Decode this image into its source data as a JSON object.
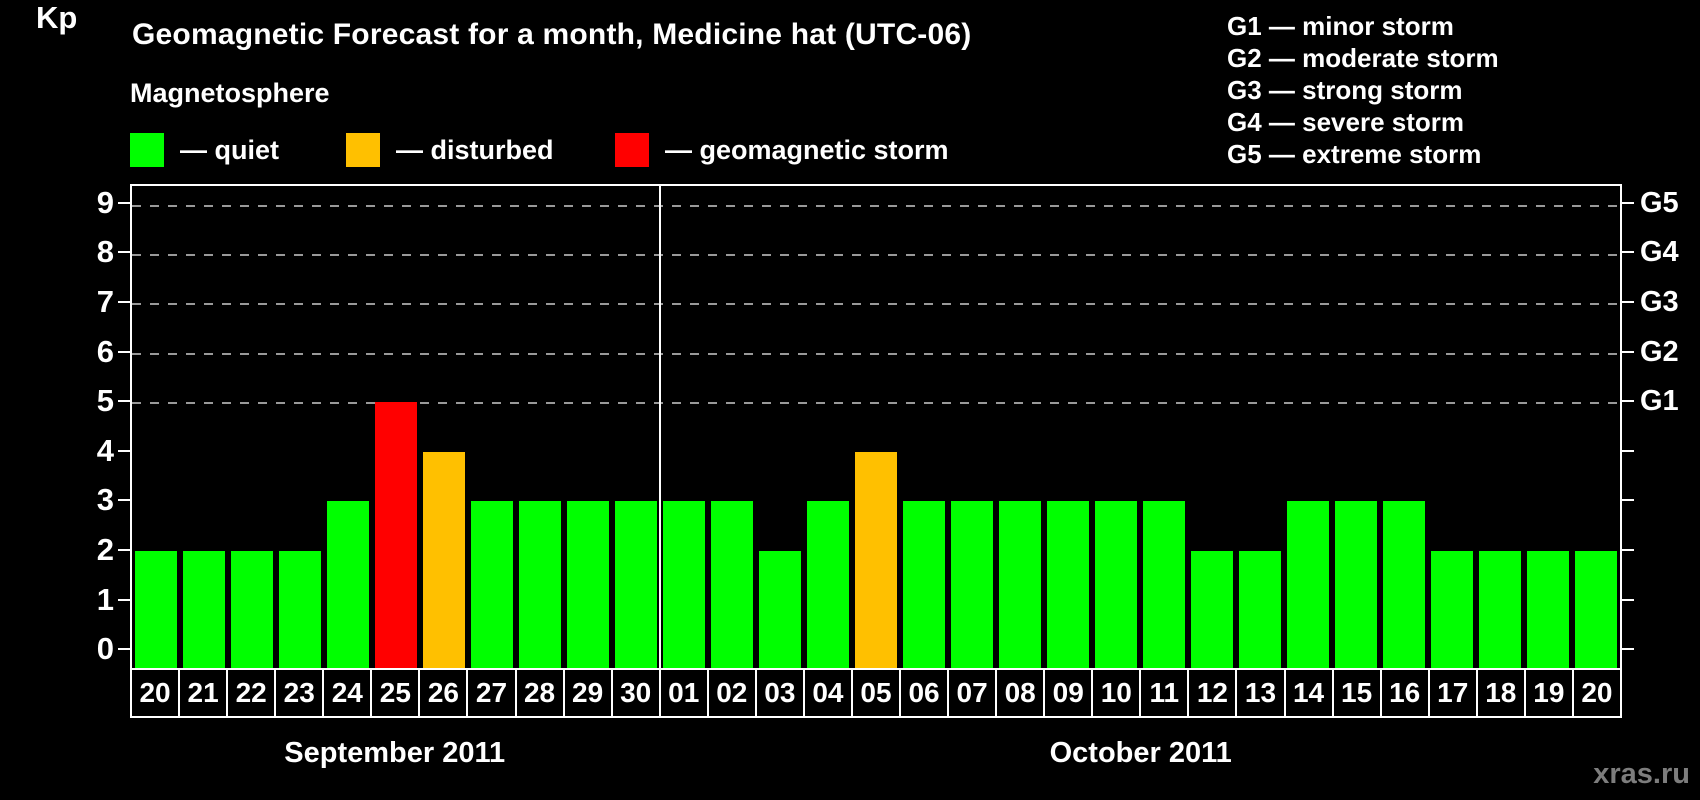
{
  "title": "Geomagnetic Forecast for a month, Medicine hat (UTC-06)",
  "legend": {
    "heading": "Magnetosphere",
    "items": [
      {
        "name": "quiet",
        "label": "— quiet",
        "color": "#00ff00"
      },
      {
        "name": "disturbed",
        "label": "— disturbed",
        "color": "#ffc000"
      },
      {
        "name": "storm",
        "label": "— geomagnetic storm",
        "color": "#ff0000"
      }
    ]
  },
  "g_scale_legend": [
    "G1 — minor storm",
    "G2 — moderate storm",
    "G3 — strong storm",
    "G4 — severe storm",
    "G5 — extreme storm"
  ],
  "watermark": "xras.ru",
  "chart_data": {
    "type": "bar",
    "title": "Geomagnetic Forecast for a month, Medicine hat (UTC-06)",
    "ylabel": "Kp",
    "ylim": [
      -0.375,
      9.375
    ],
    "y_ticks": [
      0,
      1,
      2,
      3,
      4,
      5,
      6,
      7,
      8,
      9
    ],
    "gridlines_at": [
      5,
      6,
      7,
      8,
      9
    ],
    "grid": "horizontal dashed at storm levels only",
    "right_axis": [
      {
        "kp": 5,
        "label": "G1"
      },
      {
        "kp": 6,
        "label": "G2"
      },
      {
        "kp": 7,
        "label": "G3"
      },
      {
        "kp": 8,
        "label": "G4"
      },
      {
        "kp": 9,
        "label": "G5"
      }
    ],
    "status_colors": {
      "quiet": "#00ff00",
      "disturbed": "#ffc000",
      "storm": "#ff0000"
    },
    "months": [
      {
        "label": "September 2011",
        "days": [
          {
            "day": "20",
            "kp": 2,
            "status": "quiet"
          },
          {
            "day": "21",
            "kp": 2,
            "status": "quiet"
          },
          {
            "day": "22",
            "kp": 2,
            "status": "quiet"
          },
          {
            "day": "23",
            "kp": 2,
            "status": "quiet"
          },
          {
            "day": "24",
            "kp": 3,
            "status": "quiet"
          },
          {
            "day": "25",
            "kp": 5,
            "status": "storm"
          },
          {
            "day": "26",
            "kp": 4,
            "status": "disturbed"
          },
          {
            "day": "27",
            "kp": 3,
            "status": "quiet"
          },
          {
            "day": "28",
            "kp": 3,
            "status": "quiet"
          },
          {
            "day": "29",
            "kp": 3,
            "status": "quiet"
          },
          {
            "day": "30",
            "kp": 3,
            "status": "quiet"
          }
        ]
      },
      {
        "label": "October 2011",
        "days": [
          {
            "day": "01",
            "kp": 3,
            "status": "quiet"
          },
          {
            "day": "02",
            "kp": 3,
            "status": "quiet"
          },
          {
            "day": "03",
            "kp": 2,
            "status": "quiet"
          },
          {
            "day": "04",
            "kp": 3,
            "status": "quiet"
          },
          {
            "day": "05",
            "kp": 4,
            "status": "disturbed"
          },
          {
            "day": "06",
            "kp": 3,
            "status": "quiet"
          },
          {
            "day": "07",
            "kp": 3,
            "status": "quiet"
          },
          {
            "day": "08",
            "kp": 3,
            "status": "quiet"
          },
          {
            "day": "09",
            "kp": 3,
            "status": "quiet"
          },
          {
            "day": "10",
            "kp": 3,
            "status": "quiet"
          },
          {
            "day": "11",
            "kp": 3,
            "status": "quiet"
          },
          {
            "day": "12",
            "kp": 2,
            "status": "quiet"
          },
          {
            "day": "13",
            "kp": 2,
            "status": "quiet"
          },
          {
            "day": "14",
            "kp": 3,
            "status": "quiet"
          },
          {
            "day": "15",
            "kp": 3,
            "status": "quiet"
          },
          {
            "day": "16",
            "kp": 3,
            "status": "quiet"
          },
          {
            "day": "17",
            "kp": 2,
            "status": "quiet"
          },
          {
            "day": "18",
            "kp": 2,
            "status": "quiet"
          },
          {
            "day": "19",
            "kp": 2,
            "status": "quiet"
          },
          {
            "day": "20",
            "kp": 2,
            "status": "quiet"
          }
        ]
      }
    ]
  }
}
